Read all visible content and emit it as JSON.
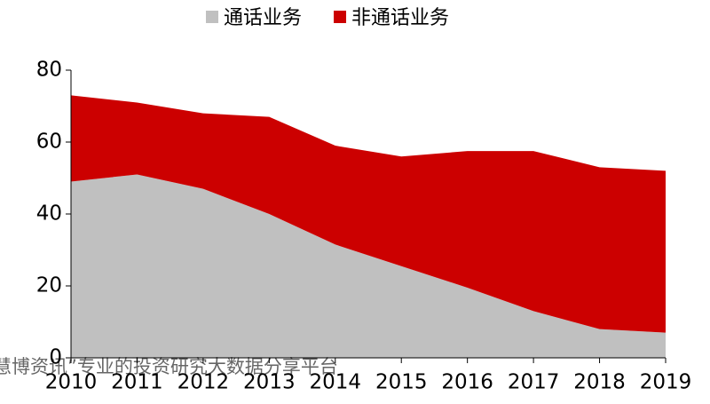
{
  "chart_data": {
    "type": "stacked_area",
    "categories": [
      "2010",
      "2011",
      "2012",
      "2013",
      "2014",
      "2015",
      "2016",
      "2017",
      "2018",
      "2019"
    ],
    "series": [
      {
        "name": "通话业务",
        "color": "#c0c0c0",
        "values": [
          49,
          51,
          47,
          40,
          31.5,
          25.5,
          19.5,
          13,
          8,
          7
        ]
      },
      {
        "name": "非通话业务",
        "color": "#cc0000",
        "values": [
          24,
          20,
          21,
          27,
          27.5,
          30.5,
          38,
          44.5,
          45,
          45
        ]
      }
    ],
    "ylim": [
      0,
      80
    ],
    "yticks": [
      0,
      20,
      40,
      60,
      80
    ],
    "legend": "top",
    "watermark": "慧博资讯”专业的投资研究大数据分享平台"
  }
}
